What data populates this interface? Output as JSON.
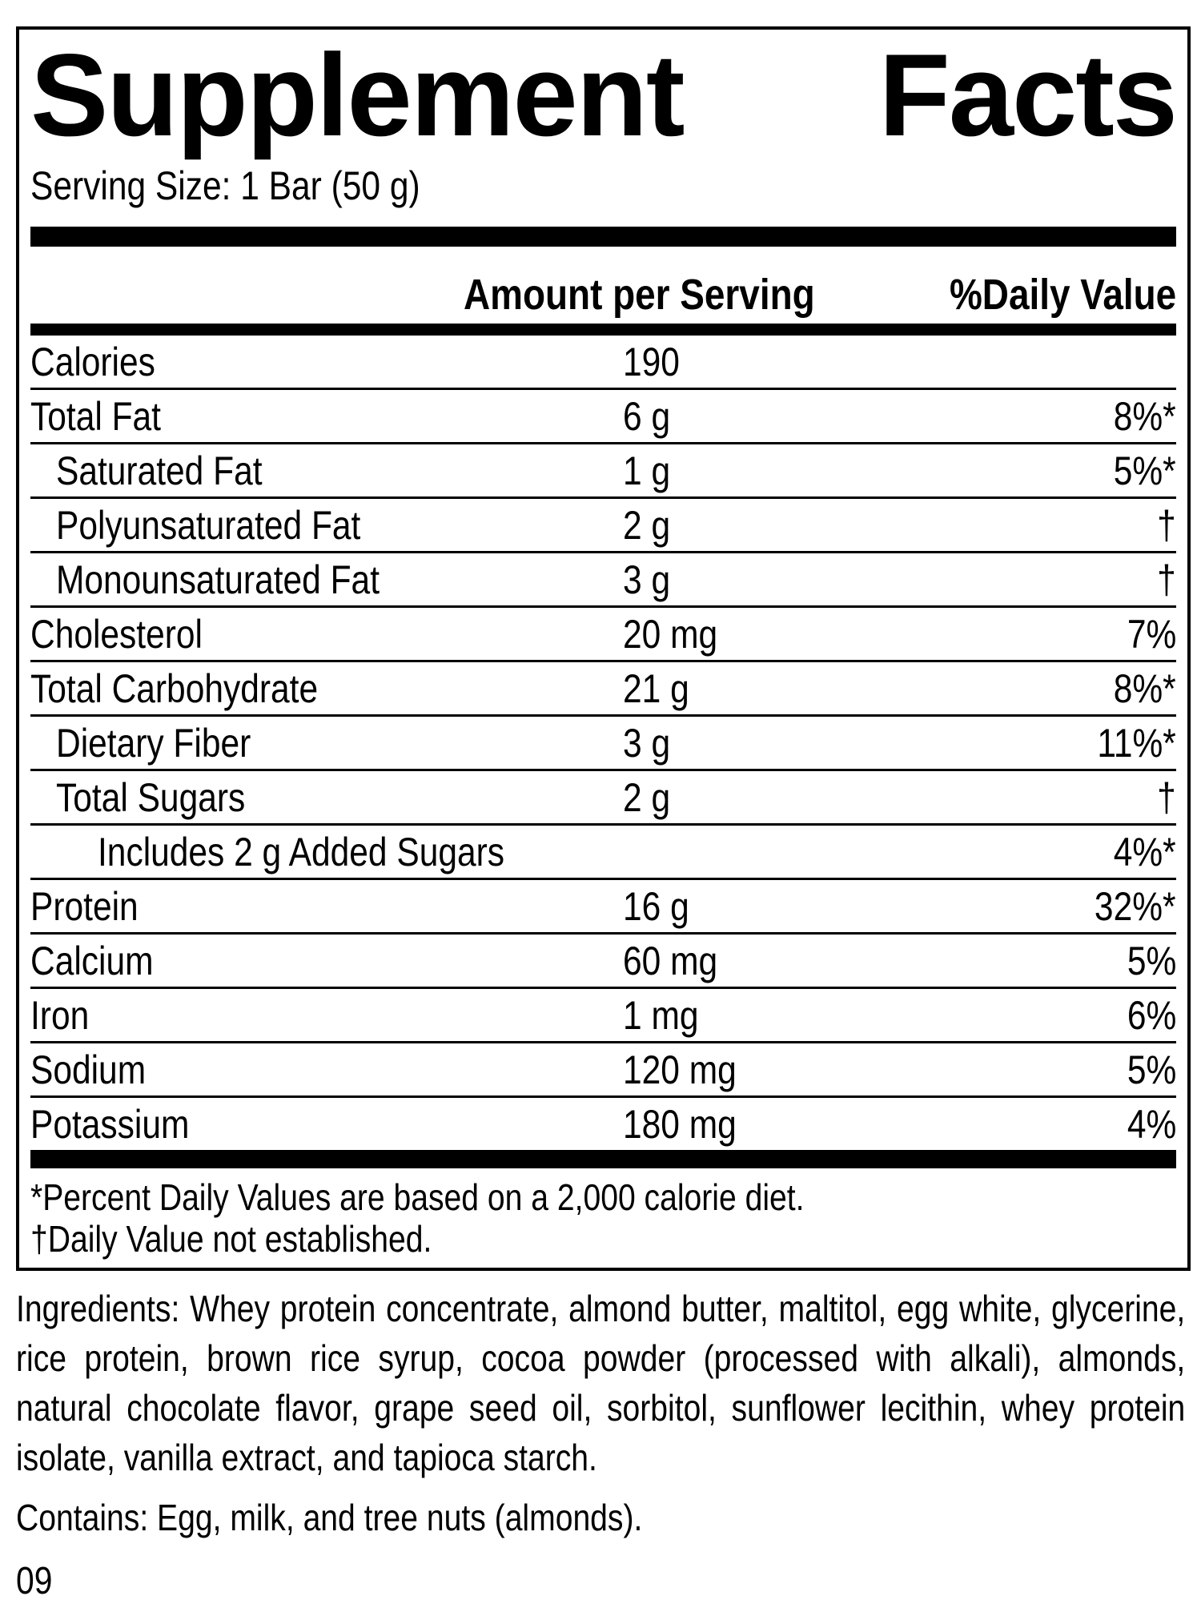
{
  "title": {
    "word1": "Supplement",
    "word2": "Facts"
  },
  "serving_size": "Serving Size: 1 Bar (50 g)",
  "table": {
    "headers": {
      "amount": "Amount per Serving",
      "daily_value": "%Daily Value"
    },
    "rows": [
      {
        "label": "Calories",
        "amount": "190",
        "daily_value": "",
        "indent": 0
      },
      {
        "label": "Total Fat",
        "amount": "6 g",
        "daily_value": "8%*",
        "indent": 0
      },
      {
        "label": "Saturated Fat",
        "amount": "1 g",
        "daily_value": "5%*",
        "indent": 1
      },
      {
        "label": "Polyunsaturated Fat",
        "amount": "2 g",
        "daily_value": "†",
        "indent": 1
      },
      {
        "label": "Monounsaturated Fat",
        "amount": "3 g",
        "daily_value": "†",
        "indent": 1
      },
      {
        "label": "Cholesterol",
        "amount": "20 mg",
        "daily_value": "7%",
        "indent": 0
      },
      {
        "label": "Total Carbohydrate",
        "amount": "21 g",
        "daily_value": "8%*",
        "indent": 0
      },
      {
        "label": "Dietary Fiber",
        "amount": "3 g",
        "daily_value": "11%*",
        "indent": 1
      },
      {
        "label": "Total Sugars",
        "amount": "2 g",
        "daily_value": "†",
        "indent": 1
      },
      {
        "label": "Includes 2 g Added Sugars",
        "amount": "",
        "daily_value": "4%*",
        "indent": 2
      },
      {
        "label": "Protein",
        "amount": "16 g",
        "daily_value": "32%*",
        "indent": 0
      },
      {
        "label": "Calcium",
        "amount": "60 mg",
        "daily_value": "5%",
        "indent": 0
      },
      {
        "label": "Iron",
        "amount": "1 mg",
        "daily_value": "6%",
        "indent": 0
      },
      {
        "label": "Sodium",
        "amount": "120 mg",
        "daily_value": "5%",
        "indent": 0
      },
      {
        "label": "Potassium",
        "amount": "180 mg",
        "daily_value": "4%",
        "indent": 0
      }
    ],
    "footnotes": [
      "*Percent Daily Values are based on a 2,000 calorie diet.",
      "†Daily Value not established."
    ]
  },
  "ingredients": "Ingredients: Whey protein concentrate, almond butter, maltitol, egg white, glycerine, rice protein, brown rice syrup, cocoa powder (processed with alkali), almonds, natural chocolate flavor, grape seed oil, sorbitol, sunflower lecithin, whey protein isolate, vanilla extract, and tapioca starch.",
  "contains": "Contains: Egg, milk, and tree nuts (almonds).",
  "footer_code": "09",
  "colors": {
    "text": "#000000",
    "background": "#ffffff"
  }
}
